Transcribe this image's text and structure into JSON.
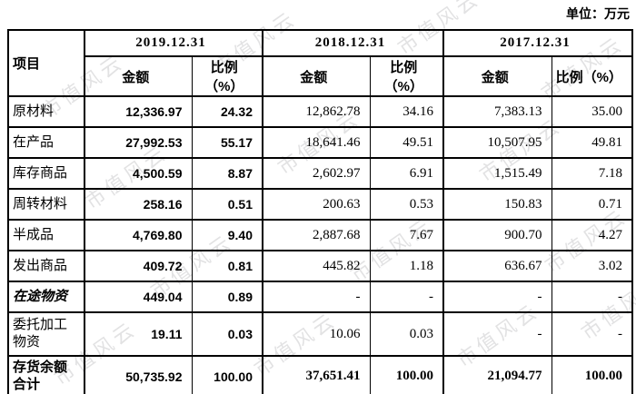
{
  "unit_label": "单位：万元",
  "watermark": "市值风云",
  "table": {
    "item_header": "项目",
    "periods": [
      "2019.12.31",
      "2018.12.31",
      "2017.12.31"
    ],
    "amount_label": "金额",
    "ratio_label": "比例（%）",
    "rows": [
      {
        "label": "原材料",
        "style": "normal",
        "values": [
          "12,336.97",
          "24.32",
          "12,862.78",
          "34.16",
          "7,383.13",
          "35.00"
        ]
      },
      {
        "label": "在产品",
        "style": "normal",
        "values": [
          "27,992.53",
          "55.17",
          "18,641.46",
          "49.51",
          "10,507.95",
          "49.81"
        ]
      },
      {
        "label": "库存商品",
        "style": "normal",
        "values": [
          "4,500.59",
          "8.87",
          "2,602.97",
          "6.91",
          "1,515.49",
          "7.18"
        ]
      },
      {
        "label": "周转材料",
        "style": "normal",
        "values": [
          "258.16",
          "0.51",
          "200.63",
          "0.53",
          "150.83",
          "0.71"
        ]
      },
      {
        "label": "半成品",
        "style": "normal",
        "values": [
          "4,769.80",
          "9.40",
          "2,887.68",
          "7.67",
          "900.70",
          "4.27"
        ]
      },
      {
        "label": "发出商品",
        "style": "normal",
        "values": [
          "409.72",
          "0.81",
          "445.82",
          "1.18",
          "636.67",
          "3.02"
        ]
      },
      {
        "label": "在途物资",
        "style": "kaiti",
        "values": [
          "449.04",
          "0.89",
          "-",
          "-",
          "-",
          "-"
        ]
      },
      {
        "label": "委托加工物资",
        "style": "weituo",
        "values": [
          "19.11",
          "0.03",
          "10.06",
          "0.03",
          "-",
          "-"
        ]
      },
      {
        "label": "存货余额合计",
        "style": "total",
        "values": [
          "50,735.92",
          "100.00",
          "37,651.41",
          "100.00",
          "21,094.77",
          "100.00"
        ]
      }
    ]
  }
}
